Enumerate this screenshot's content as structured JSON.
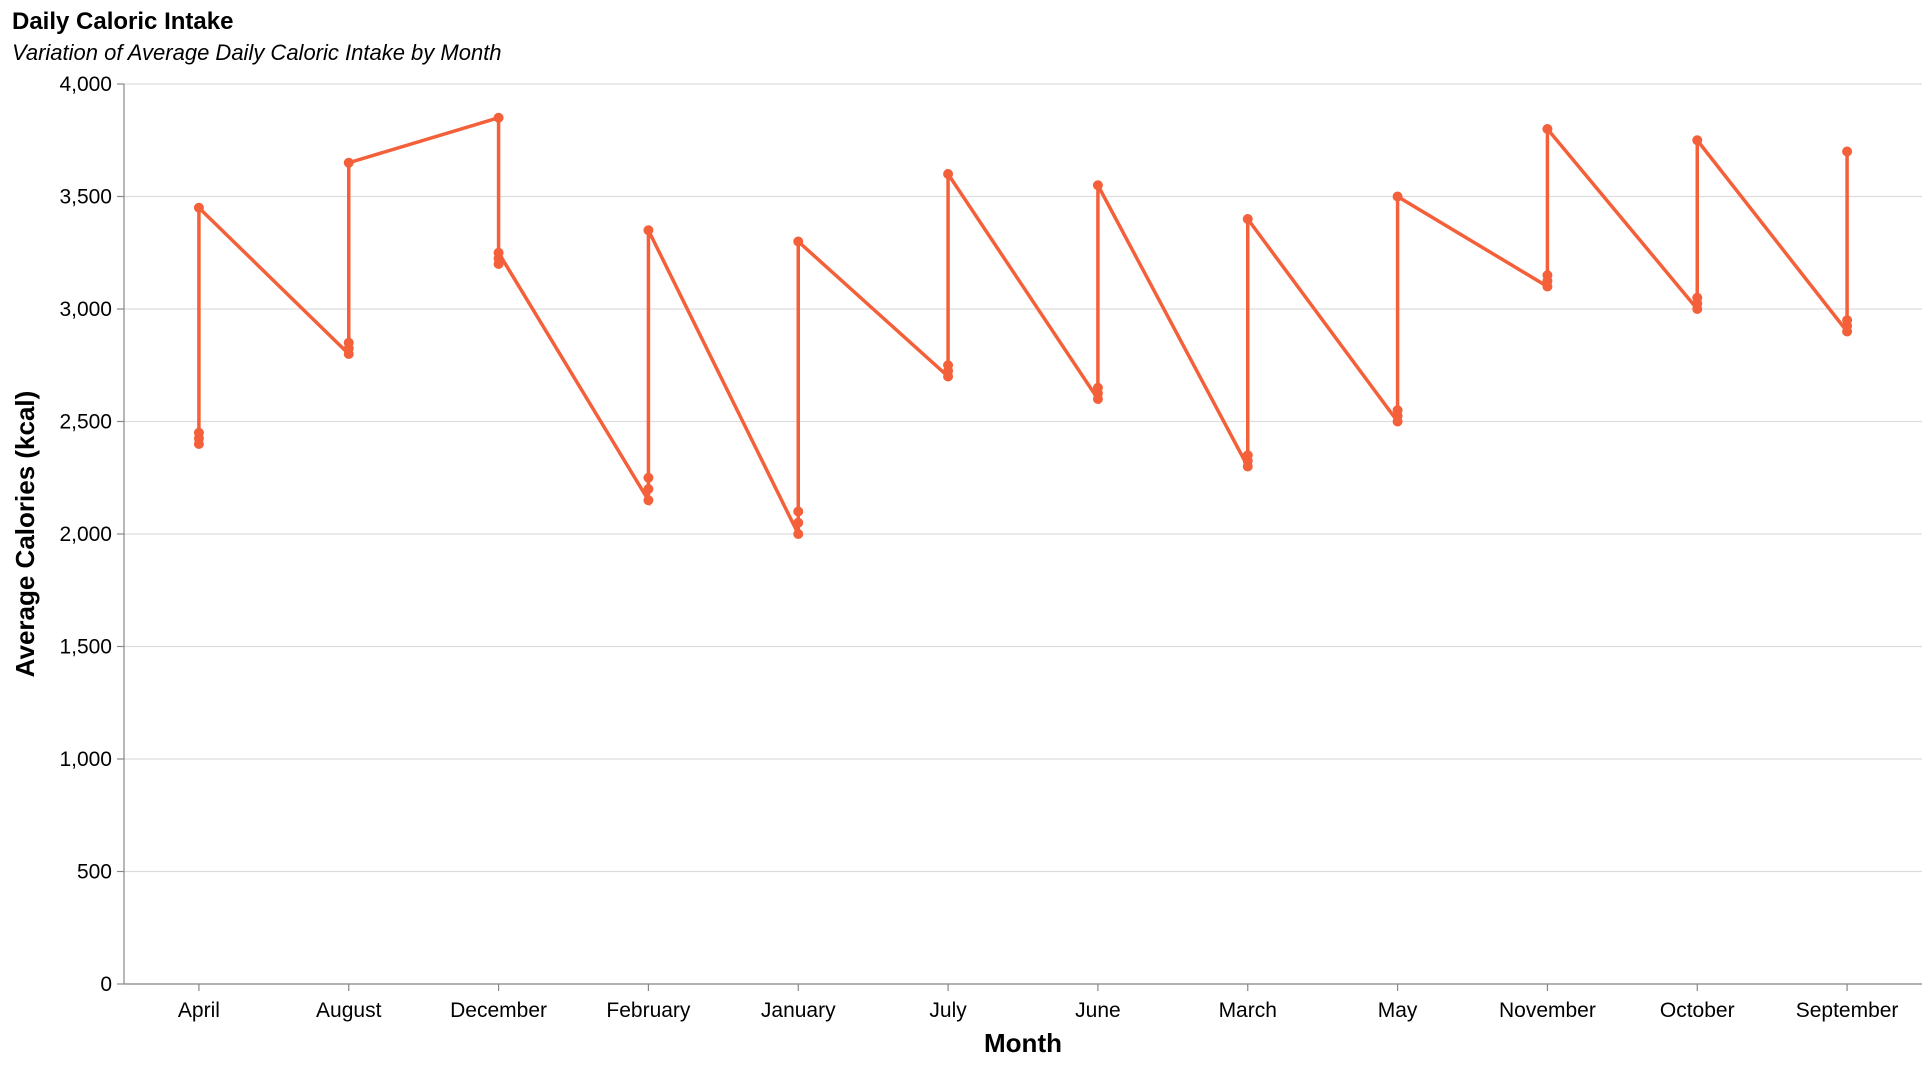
{
  "chart_data": {
    "type": "line",
    "title": "Daily Caloric Intake",
    "subtitle": "Variation of Average Daily Caloric Intake by Month",
    "xlabel": "Month",
    "ylabel": "Average Calories (kcal)",
    "ylim": [
      0,
      4000
    ],
    "yticks": [
      0,
      500,
      1000,
      1500,
      2000,
      2500,
      3000,
      3500,
      4000
    ],
    "ytick_labels": [
      "0",
      "500",
      "1,000",
      "1,500",
      "2,000",
      "2,500",
      "3,000",
      "3,500",
      "4,000"
    ],
    "grid": true,
    "categories": [
      "April",
      "August",
      "December",
      "February",
      "January",
      "July",
      "June",
      "March",
      "May",
      "November",
      "October",
      "September"
    ],
    "color": "#f4603a",
    "points": [
      {
        "x": "April",
        "y": 2400
      },
      {
        "x": "April",
        "y": 2425
      },
      {
        "x": "April",
        "y": 2450
      },
      {
        "x": "April",
        "y": 3450
      },
      {
        "x": "August",
        "y": 2800
      },
      {
        "x": "August",
        "y": 2825
      },
      {
        "x": "August",
        "y": 2850
      },
      {
        "x": "August",
        "y": 3650
      },
      {
        "x": "December",
        "y": 3850
      },
      {
        "x": "December",
        "y": 3200
      },
      {
        "x": "December",
        "y": 3225
      },
      {
        "x": "December",
        "y": 3250
      },
      {
        "x": "February",
        "y": 2150
      },
      {
        "x": "February",
        "y": 2200
      },
      {
        "x": "February",
        "y": 2250
      },
      {
        "x": "February",
        "y": 3350
      },
      {
        "x": "January",
        "y": 2000
      },
      {
        "x": "January",
        "y": 2050
      },
      {
        "x": "January",
        "y": 2100
      },
      {
        "x": "January",
        "y": 3300
      },
      {
        "x": "July",
        "y": 2700
      },
      {
        "x": "July",
        "y": 2725
      },
      {
        "x": "July",
        "y": 2750
      },
      {
        "x": "July",
        "y": 3600
      },
      {
        "x": "June",
        "y": 2600
      },
      {
        "x": "June",
        "y": 2625
      },
      {
        "x": "June",
        "y": 2650
      },
      {
        "x": "June",
        "y": 3550
      },
      {
        "x": "March",
        "y": 2300
      },
      {
        "x": "March",
        "y": 2325
      },
      {
        "x": "March",
        "y": 2350
      },
      {
        "x": "March",
        "y": 3400
      },
      {
        "x": "May",
        "y": 2500
      },
      {
        "x": "May",
        "y": 2525
      },
      {
        "x": "May",
        "y": 2550
      },
      {
        "x": "May",
        "y": 3500
      },
      {
        "x": "November",
        "y": 3100
      },
      {
        "x": "November",
        "y": 3125
      },
      {
        "x": "November",
        "y": 3150
      },
      {
        "x": "November",
        "y": 3800
      },
      {
        "x": "October",
        "y": 3000
      },
      {
        "x": "October",
        "y": 3025
      },
      {
        "x": "October",
        "y": 3050
      },
      {
        "x": "October",
        "y": 3750
      },
      {
        "x": "September",
        "y": 2900
      },
      {
        "x": "September",
        "y": 2925
      },
      {
        "x": "September",
        "y": 2950
      },
      {
        "x": "September",
        "y": 3700
      }
    ]
  }
}
